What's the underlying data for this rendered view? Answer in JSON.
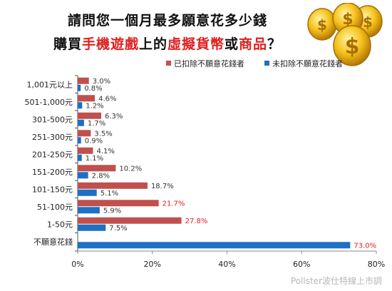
{
  "title": {
    "line1": "請問您一個月最多願意花多少錢",
    "line2": [
      {
        "text": "購買",
        "highlight": false
      },
      {
        "text": "手機遊戲",
        "highlight": true
      },
      {
        "text": "上的",
        "highlight": false
      },
      {
        "text": "虛擬貨幣",
        "highlight": true
      },
      {
        "text": "或",
        "highlight": false
      },
      {
        "text": "商品",
        "highlight": true
      },
      {
        "text": "？",
        "highlight": false
      }
    ]
  },
  "watermark": "Pollster波仕特線上市調",
  "colors": {
    "series1": "#c0504d",
    "series2": "#1f6fc5",
    "highlight_text": "#e02020",
    "normal_label": "#333333"
  },
  "chart_data": {
    "type": "bar",
    "orientation": "horizontal",
    "categories": [
      "1,001元以上",
      "501-1,000元",
      "301-500元",
      "251-300元",
      "201-250元",
      "151-200元",
      "101-150元",
      "51-100元",
      "1-50元",
      "不願意花錢"
    ],
    "series": [
      {
        "name": "已扣除不願意花錢者",
        "values": [
          3.0,
          4.6,
          6.3,
          3.5,
          4.1,
          10.2,
          18.7,
          21.7,
          27.8,
          null
        ],
        "labels": [
          "3.0%",
          "4.6%",
          "6.3%",
          "3.5%",
          "4.1%",
          "10.2%",
          "18.7%",
          "21.7%",
          "27.8%",
          ""
        ]
      },
      {
        "name": "未扣除不願意花錢者",
        "values": [
          0.8,
          1.2,
          1.7,
          0.9,
          1.1,
          2.8,
          5.1,
          5.9,
          7.5,
          73.0
        ],
        "labels": [
          "0.8%",
          "1.2%",
          "1.7%",
          "0.9%",
          "1.1%",
          "2.8%",
          "5.1%",
          "5.9%",
          "7.5%",
          "73.0%"
        ]
      }
    ],
    "highlighted_labels": [
      "21.7%",
      "27.8%",
      "73.0%"
    ],
    "xaxis": {
      "ticks": [
        "0%",
        "20%",
        "40%",
        "60%",
        "80%"
      ],
      "tick_values": [
        0,
        20,
        40,
        60,
        80
      ],
      "range": [
        0,
        80
      ]
    },
    "legend_position": "top",
    "grid": false
  }
}
